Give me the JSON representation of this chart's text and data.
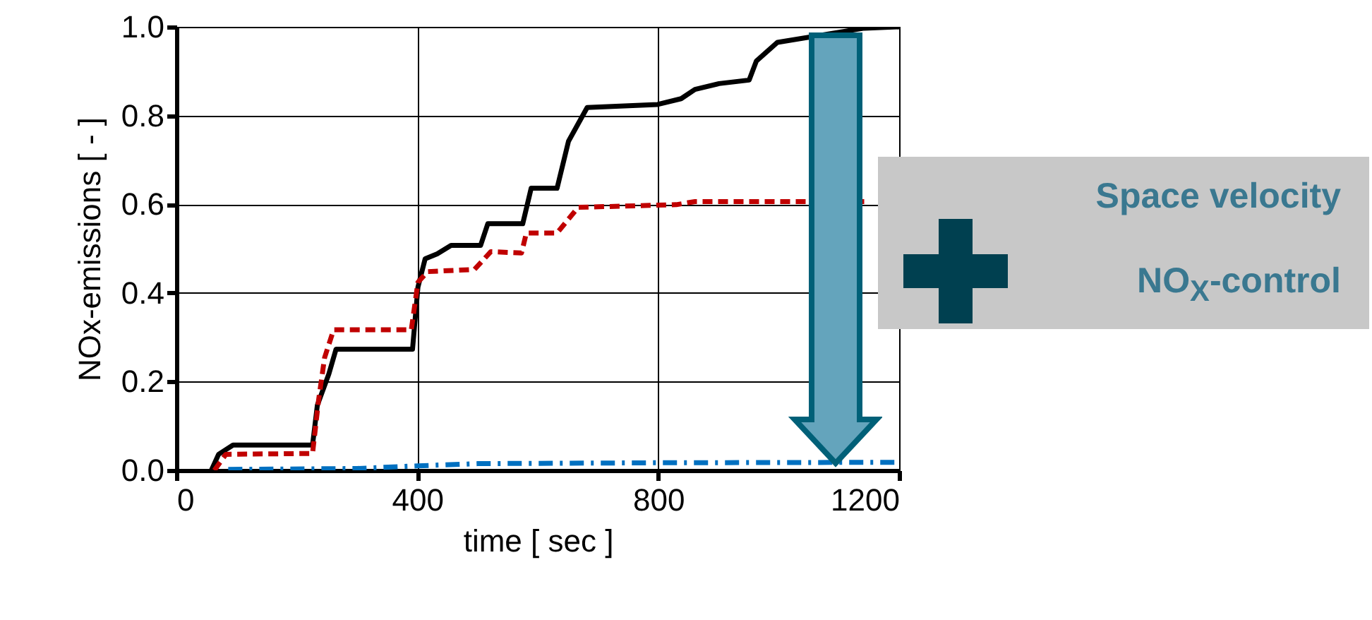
{
  "chart_data": {
    "type": "line",
    "xlabel": "time [ sec ]",
    "ylabel": "NOx-emissions [ - ]",
    "xlim": [
      0,
      1200
    ],
    "xticks": [
      0,
      400,
      800,
      1200
    ],
    "ylim": [
      0,
      1
    ],
    "yticks": [
      {
        "value": 0,
        "label": "0.0"
      },
      {
        "value": 0.2,
        "label": "0.2"
      },
      {
        "value": 0.4,
        "label": "0.4"
      },
      {
        "value": 0.6,
        "label": "0.6"
      },
      {
        "value": 0.8,
        "label": "0.8"
      },
      {
        "value": 1,
        "label": "1.0"
      }
    ],
    "grid": true,
    "marker": "none",
    "series": [
      {
        "color": "#000000",
        "line_style": "solid",
        "x": [
          58,
          70,
          94,
          226,
          234,
          253,
          265,
          392,
          401,
          413,
          433,
          456,
          505,
          517,
          575,
          589,
          632,
          651,
          682,
          799,
          838,
          861,
          901,
          951,
          963,
          998,
          1142,
          1200
        ],
        "values": [
          0,
          0.036,
          0.057,
          0.057,
          0.147,
          0.217,
          0.273,
          0.273,
          0.413,
          0.477,
          0.488,
          0.507,
          0.507,
          0.556,
          0.556,
          0.636,
          0.636,
          0.742,
          0.818,
          0.825,
          0.838,
          0.859,
          0.872,
          0.88,
          0.923,
          0.965,
          0.997,
          1
        ]
      },
      {
        "color": "#c00000",
        "line_style": "dashed",
        "x": [
          63,
          82,
          226,
          236,
          246,
          261,
          390,
          401,
          417,
          495,
          522,
          573,
          581,
          632,
          667,
          830,
          861,
          1142
        ],
        "values": [
          0,
          0.036,
          0.038,
          0.158,
          0.254,
          0.317,
          0.317,
          0.424,
          0.448,
          0.453,
          0.493,
          0.49,
          0.535,
          0.535,
          0.593,
          0.599,
          0.606,
          0.606
        ]
      },
      {
        "color": "#0070c0",
        "line_style": "dotted",
        "x": [
          86,
          300,
          400,
          500,
          800,
          1200
        ],
        "values": [
          0.002,
          0.004,
          0.01,
          0.015,
          0.017,
          0.018
        ]
      }
    ],
    "annotations": [
      "Space velocity",
      "NO$_{X}$-control"
    ]
  }
}
